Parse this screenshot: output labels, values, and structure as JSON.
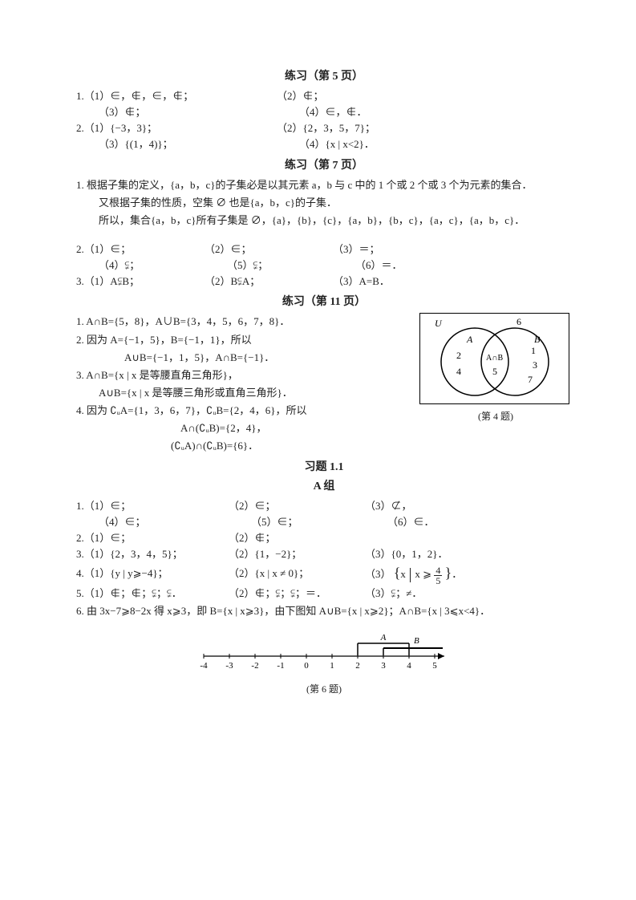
{
  "sections": {
    "s5_title": "练习（第 5 页）",
    "s7_title": "练习（第 7 页）",
    "s11_title": "练习（第 11 页）",
    "ex_title": "习题 1.1",
    "group_a": "A 组"
  },
  "p5": {
    "l1a": "1.（1）∈，∉，∈，∉；",
    "l1b": "（2）∉；",
    "l2a": "（3）∉；",
    "l2b": "（4）∈，∉．",
    "l3a": "2.（1）{−3，3}；",
    "l3b": "（2）{2，3，5，7}；",
    "l4a": "（3）{(1，4)}；",
    "l4b": "（4）{x | x<2}．"
  },
  "p7": {
    "t1": "1. 根据子集的定义，{a，b，c}的子集必是以其元素 a，b 与 c 中的 1 个或 2 个或 3 个为元素的集合．",
    "t2": "又根据子集的性质，空集 ∅ 也是{a，b，c}的子集．",
    "t3": "所以，集合{a，b，c}所有子集是 ∅，{a}，{b}，{c}，{a，b}，{b，c}，{a，c}，{a，b，c}．",
    "r1a": "2.（1）∈；",
    "r1b": "（2）∈；",
    "r1c": "（3）＝；",
    "r2a": "（4）⫋；",
    "r2b": "（5）⫋；",
    "r2c": "（6）＝．",
    "r3a": "3.（1）A⫋B；",
    "r3b": "（2）B⫋A；",
    "r3c": "（3）A=B．"
  },
  "p11": {
    "l1": "1. A∩B={5，8}，A∪B={3，4，5，6，7，8}．",
    "l2": "2. 因为 A={−1，5}，B={−1，1}，所以",
    "l2b": "A∪B={−1，1，5}，A∩B={−1}．",
    "l3": "3. A∩B={x | x 是等腰直角三角形}，",
    "l3b": "A∪B={x | x 是等腰三角形或直角三角形}．",
    "l4": "4. 因为 ∁ᵤA={1，3，6，7}，∁ᵤB={2，4，6}，所以",
    "l4b": "A∩(∁ᵤB)={2，4}，",
    "l4c": "(∁ᵤA)∩(∁ᵤB)={6}．"
  },
  "venn": {
    "caption": "(第 4 题)",
    "U": "U",
    "six": "6",
    "A": "A",
    "B": "B",
    "a1": "2",
    "a2": "4",
    "m1": "A∩B",
    "m2": "5",
    "b1": "1",
    "b2": "3",
    "b3": "7",
    "circle_stroke": "#000",
    "border": "#000",
    "fontsize": 12
  },
  "groupA": {
    "q1": {
      "a": "1.（1）∈；",
      "b": "（2）∈；",
      "c": "（3）⊄，",
      "d": "（4）∈；",
      "e": "（5）∈；",
      "f": "（6）∈．"
    },
    "q2": {
      "a": "2.（1）∈；",
      "b": "（2）∉；"
    },
    "q3": {
      "a": "3.（1）{2，3，4，5}；",
      "b": "（2）{1，−2}；",
      "c": "（3）{0，1，2}．"
    },
    "q4": {
      "a": "4.（1）{y | y⩾−4}；",
      "b": "（2）{x | x ≠ 0}；",
      "c_pre": "（3）",
      "c_x": "x",
      "c_mid": "x ⩾",
      "c_num": "4",
      "c_den": "5",
      "c_post": "．"
    },
    "q5": {
      "a": "5.（1）∉；∉；⫋；⫋．",
      "b": "（2）∉；⫋；⫋；＝．",
      "c": "（3）⫋；≠．"
    },
    "q6": "6. 由 3x−7⩾8−2x 得 x⩾3，即 B={x | x⩾3}，由下图知 A∪B={x | x⩾2}；A∩B={x | 3⩽x<4}．"
  },
  "numberline": {
    "caption": "(第 6 题)",
    "xmin": -4,
    "xmax": 5,
    "tick_step": 1,
    "A_label": "A",
    "B_label": "B",
    "A_range": [
      2,
      4
    ],
    "B_start": 3,
    "axis_color": "#000",
    "fontsize": 11
  },
  "colors": {
    "text": "#222222",
    "bg": "#ffffff"
  }
}
